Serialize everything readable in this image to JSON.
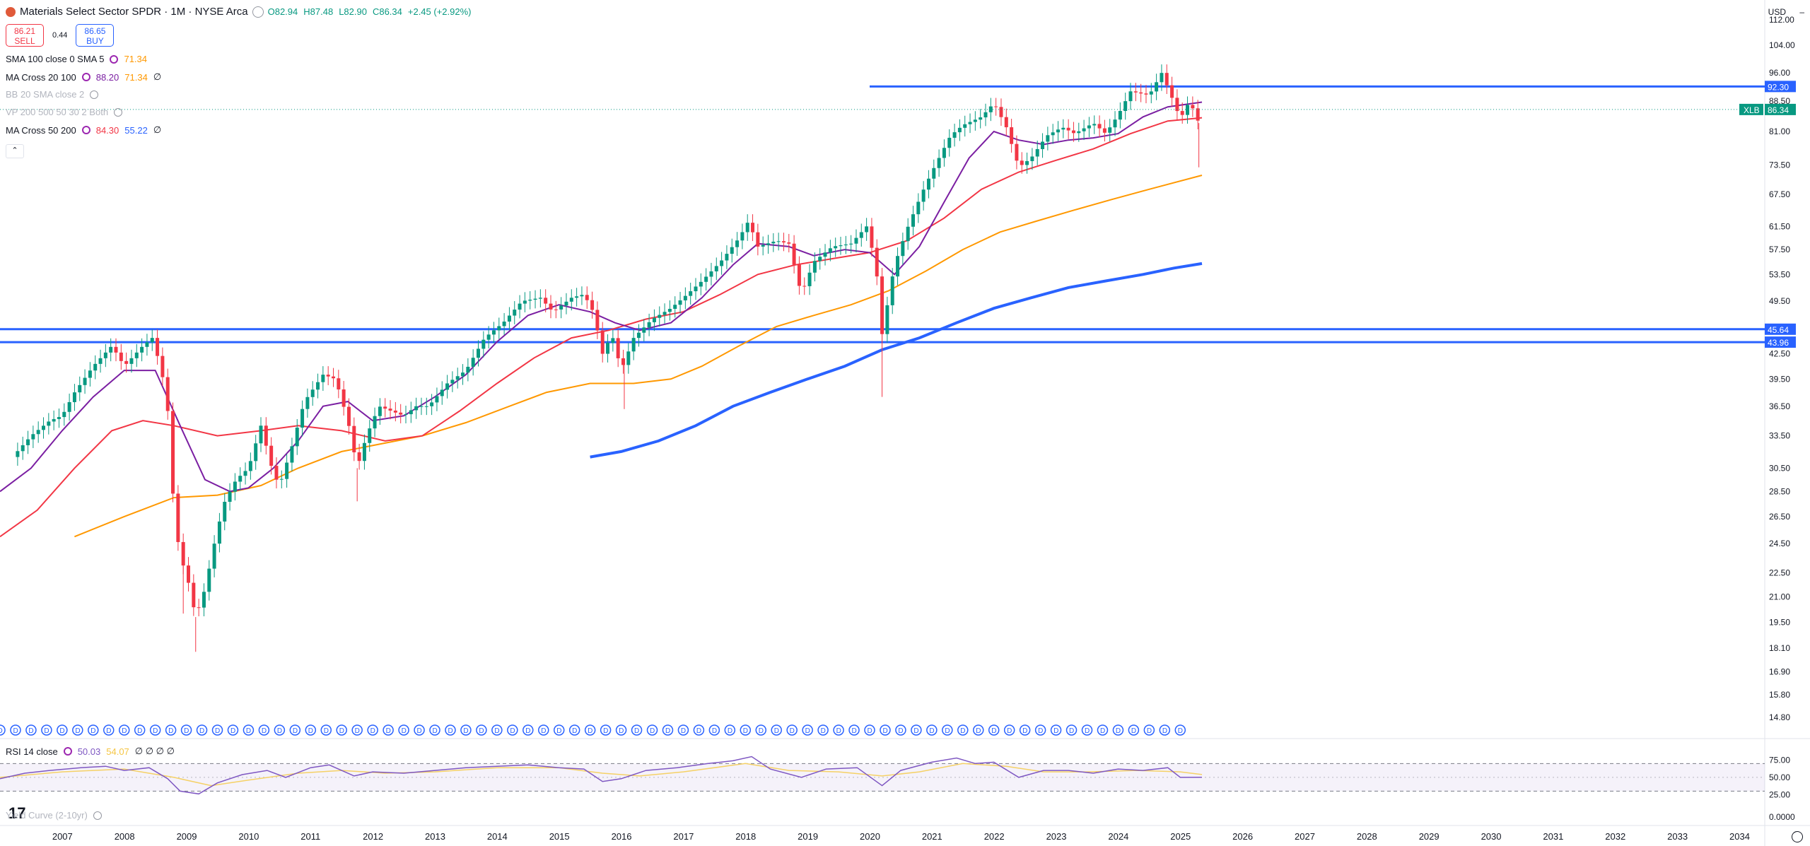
{
  "header": {
    "symbol_title": "Materials Select Sector SPDR · 1M · NYSE Arca",
    "open": "O82.94",
    "high": "H87.48",
    "low": "L82.90",
    "close": "C86.34",
    "change": "+2.45 (+2.92%)"
  },
  "trade": {
    "sell_price": "86.21",
    "sell_label": "SELL",
    "spread": "0.44",
    "buy_price": "86.65",
    "buy_label": "BUY"
  },
  "indicators": [
    {
      "label": "SMA 100 close 0 SMA 5",
      "v1": "71.34",
      "v1_color": "#ff9800",
      "v2": "",
      "v2_color": "",
      "tail": "",
      "dim": false
    },
    {
      "label": "MA Cross 20 100",
      "v1": "88.20",
      "v1_color": "#7b1fa2",
      "v2": "71.34",
      "v2_color": "#ff9800",
      "tail": "∅",
      "dim": false
    },
    {
      "label": "BB 20 SMA close 2",
      "v1": "",
      "v1_color": "",
      "v2": "",
      "v2_color": "",
      "tail": "",
      "dim": true
    },
    {
      "label": "VP 200 500 50 30 2 Both",
      "v1": "",
      "v1_color": "",
      "v2": "",
      "v2_color": "",
      "tail": "",
      "dim": true
    },
    {
      "label": "MA Cross 50 200",
      "v1": "84.30",
      "v1_color": "#f23645",
      "v2": "55.22",
      "v2_color": "#2962ff",
      "tail": "∅",
      "dim": false
    }
  ],
  "rsi": {
    "label": "RSI 14 close",
    "v1": "50.03",
    "v2": "54.07",
    "tail": "∅ ∅ ∅ ∅"
  },
  "yield_curve": {
    "label": "Yield Curve (2-10yr)"
  },
  "currency": "USD",
  "colors": {
    "up": "#089981",
    "down": "#f23645",
    "hline": "#2962ff",
    "ma20": "#7b1fa2",
    "ma50": "#f23645",
    "sma100": "#ff9800",
    "ma200": "#2962ff",
    "rsi": "#7e57c2",
    "rsi_ma": "#f5d166"
  },
  "chart_data": {
    "type": "candlestick",
    "interval": "1M",
    "scale": "log",
    "y_ticks": [
      "112.00",
      "104.00",
      "96.00",
      "88.50",
      "81.00",
      "73.50",
      "67.50",
      "61.50",
      "57.50",
      "53.50",
      "49.50",
      "42.50",
      "39.50",
      "36.50",
      "33.50",
      "30.50",
      "28.50",
      "26.50",
      "24.50",
      "22.50",
      "21.00",
      "19.50",
      "18.10",
      "16.90",
      "15.80",
      "14.80"
    ],
    "x_ticks": [
      "2007",
      "2008",
      "2009",
      "2010",
      "2011",
      "2012",
      "2013",
      "2014",
      "2015",
      "2016",
      "2017",
      "2018",
      "2019",
      "2020",
      "2021",
      "2022",
      "2023",
      "2024",
      "2025",
      "2026",
      "2027",
      "2028",
      "2029",
      "2030",
      "2031",
      "2032",
      "2033",
      "2034"
    ],
    "close_path": [
      [
        2006.2,
        31.5
      ],
      [
        2006.5,
        33.5
      ],
      [
        2006.8,
        35.0
      ],
      [
        2007.0,
        35.5
      ],
      [
        2007.2,
        38.0
      ],
      [
        2007.5,
        41.0
      ],
      [
        2007.8,
        43.5
      ],
      [
        2008.0,
        41.0
      ],
      [
        2008.3,
        43.5
      ],
      [
        2008.45,
        44.5
      ],
      [
        2008.6,
        40.5
      ],
      [
        2008.7,
        36.0
      ],
      [
        2008.8,
        27.0
      ],
      [
        2008.9,
        23.5
      ],
      [
        2009.0,
        22.5
      ],
      [
        2009.15,
        19.8
      ],
      [
        2009.3,
        21.5
      ],
      [
        2009.45,
        24.5
      ],
      [
        2009.6,
        27.5
      ],
      [
        2009.8,
        29.5
      ],
      [
        2010.0,
        30.5
      ],
      [
        2010.2,
        34.5
      ],
      [
        2010.4,
        30.0
      ],
      [
        2010.5,
        29.0
      ],
      [
        2010.7,
        32.5
      ],
      [
        2010.9,
        37.0
      ],
      [
        2011.2,
        40.0
      ],
      [
        2011.4,
        39.5
      ],
      [
        2011.6,
        35.0
      ],
      [
        2011.75,
        30.5
      ],
      [
        2011.9,
        33.5
      ],
      [
        2012.1,
        36.5
      ],
      [
        2012.3,
        36.0
      ],
      [
        2012.5,
        35.5
      ],
      [
        2012.7,
        36.5
      ],
      [
        2012.9,
        36.5
      ],
      [
        2013.2,
        39.0
      ],
      [
        2013.5,
        40.5
      ],
      [
        2013.8,
        44.5
      ],
      [
        2014.1,
        46.5
      ],
      [
        2014.4,
        49.5
      ],
      [
        2014.7,
        50.0
      ],
      [
        2014.9,
        48.0
      ],
      [
        2015.2,
        50.0
      ],
      [
        2015.4,
        50.5
      ],
      [
        2015.55,
        48.0
      ],
      [
        2015.7,
        42.5
      ],
      [
        2015.85,
        45.0
      ],
      [
        2016.0,
        40.5
      ],
      [
        2016.2,
        44.5
      ],
      [
        2016.5,
        47.0
      ],
      [
        2016.8,
        48.5
      ],
      [
        2017.0,
        50.0
      ],
      [
        2017.3,
        52.5
      ],
      [
        2017.6,
        55.5
      ],
      [
        2017.9,
        59.5
      ],
      [
        2018.05,
        62.5
      ],
      [
        2018.2,
        58.0
      ],
      [
        2018.5,
        59.0
      ],
      [
        2018.7,
        58.5
      ],
      [
        2018.9,
        50.5
      ],
      [
        2019.1,
        55.5
      ],
      [
        2019.4,
        58.0
      ],
      [
        2019.7,
        58.5
      ],
      [
        2019.95,
        61.5
      ],
      [
        2020.1,
        55.0
      ],
      [
        2020.2,
        45.0
      ],
      [
        2020.4,
        55.0
      ],
      [
        2020.6,
        61.0
      ],
      [
        2020.85,
        68.0
      ],
      [
        2021.0,
        72.0
      ],
      [
        2021.3,
        80.0
      ],
      [
        2021.5,
        82.5
      ],
      [
        2021.8,
        84.5
      ],
      [
        2022.0,
        88.0
      ],
      [
        2022.2,
        82.0
      ],
      [
        2022.4,
        73.0
      ],
      [
        2022.6,
        75.0
      ],
      [
        2022.85,
        80.0
      ],
      [
        2023.1,
        82.0
      ],
      [
        2023.3,
        80.5
      ],
      [
        2023.6,
        83.0
      ],
      [
        2023.8,
        80.5
      ],
      [
        2024.0,
        85.0
      ],
      [
        2024.2,
        91.0
      ],
      [
        2024.5,
        90.0
      ],
      [
        2024.7,
        96.0
      ],
      [
        2024.85,
        90.0
      ],
      [
        2025.0,
        84.0
      ],
      [
        2025.15,
        88.5
      ],
      [
        2025.3,
        83.0
      ],
      [
        2025.35,
        86.34
      ]
    ],
    "crash_wicks": [
      {
        "x": 2008.95,
        "low": 20.0
      },
      {
        "x": 2009.15,
        "low": 17.9
      },
      {
        "x": 2020.2,
        "low": 37.5
      },
      {
        "x": 2016.05,
        "low": 36.2
      },
      {
        "x": 2011.75,
        "low": 27.7
      },
      {
        "x": 2025.3,
        "low": 73.0
      }
    ],
    "horizontal_lines": [
      {
        "price": 92.3,
        "label": "92.30",
        "from": 2020.0
      },
      {
        "price": 45.64,
        "label": "45.64",
        "from": 2006.0
      },
      {
        "price": 43.96,
        "label": "43.96",
        "from": 2006.0
      }
    ],
    "last_price": {
      "symbol": "XLB",
      "value": "86.34"
    },
    "ma20_path": [
      [
        2006.0,
        28.5
      ],
      [
        2006.5,
        30.5
      ],
      [
        2007.0,
        34.0
      ],
      [
        2007.5,
        37.5
      ],
      [
        2008.0,
        40.5
      ],
      [
        2008.5,
        40.5
      ],
      [
        2008.9,
        34.5
      ],
      [
        2009.3,
        29.5
      ],
      [
        2009.7,
        28.5
      ],
      [
        2010.0,
        28.8
      ],
      [
        2010.4,
        30.5
      ],
      [
        2010.8,
        33.0
      ],
      [
        2011.2,
        36.5
      ],
      [
        2011.6,
        37.0
      ],
      [
        2012.0,
        35.0
      ],
      [
        2012.5,
        35.5
      ],
      [
        2013.0,
        37.5
      ],
      [
        2013.5,
        40.0
      ],
      [
        2014.0,
        44.0
      ],
      [
        2014.5,
        47.5
      ],
      [
        2015.0,
        49.0
      ],
      [
        2015.5,
        48.0
      ],
      [
        2015.9,
        46.5
      ],
      [
        2016.3,
        45.5
      ],
      [
        2016.8,
        46.5
      ],
      [
        2017.3,
        50.0
      ],
      [
        2017.8,
        55.0
      ],
      [
        2018.2,
        58.5
      ],
      [
        2018.7,
        58.0
      ],
      [
        2019.1,
        56.5
      ],
      [
        2019.6,
        57.5
      ],
      [
        2020.0,
        57.0
      ],
      [
        2020.4,
        53.5
      ],
      [
        2020.8,
        58.0
      ],
      [
        2021.2,
        66.0
      ],
      [
        2021.6,
        75.0
      ],
      [
        2022.0,
        81.0
      ],
      [
        2022.4,
        79.0
      ],
      [
        2022.8,
        78.0
      ],
      [
        2023.2,
        79.0
      ],
      [
        2023.6,
        79.5
      ],
      [
        2024.0,
        80.5
      ],
      [
        2024.4,
        84.5
      ],
      [
        2024.8,
        87.0
      ],
      [
        2025.35,
        88.2
      ]
    ],
    "ma50_path": [
      [
        2006.0,
        25.0
      ],
      [
        2006.6,
        27.0
      ],
      [
        2007.2,
        30.5
      ],
      [
        2007.8,
        34.0
      ],
      [
        2008.3,
        35.0
      ],
      [
        2008.8,
        34.5
      ],
      [
        2009.5,
        33.5
      ],
      [
        2010.2,
        34.0
      ],
      [
        2010.8,
        34.5
      ],
      [
        2011.5,
        34.0
      ],
      [
        2012.2,
        33.0
      ],
      [
        2012.8,
        33.5
      ],
      [
        2013.4,
        36.0
      ],
      [
        2014.0,
        39.0
      ],
      [
        2014.6,
        42.0
      ],
      [
        2015.2,
        44.5
      ],
      [
        2015.8,
        45.5
      ],
      [
        2016.4,
        47.0
      ],
      [
        2017.0,
        48.0
      ],
      [
        2017.6,
        50.5
      ],
      [
        2018.2,
        53.5
      ],
      [
        2018.8,
        55.0
      ],
      [
        2019.4,
        56.0
      ],
      [
        2020.0,
        57.0
      ],
      [
        2020.6,
        59.0
      ],
      [
        2021.2,
        63.0
      ],
      [
        2021.8,
        68.5
      ],
      [
        2022.4,
        72.0
      ],
      [
        2023.0,
        74.5
      ],
      [
        2023.6,
        77.0
      ],
      [
        2024.2,
        80.5
      ],
      [
        2024.8,
        83.5
      ],
      [
        2025.35,
        84.3
      ]
    ],
    "sma100_path": [
      [
        2007.2,
        25.0
      ],
      [
        2008.0,
        26.5
      ],
      [
        2008.8,
        28.0
      ],
      [
        2009.5,
        28.2
      ],
      [
        2010.2,
        29.0
      ],
      [
        2010.8,
        30.5
      ],
      [
        2011.5,
        32.0
      ],
      [
        2012.2,
        32.8
      ],
      [
        2012.8,
        33.5
      ],
      [
        2013.5,
        34.8
      ],
      [
        2014.2,
        36.5
      ],
      [
        2014.8,
        38.0
      ],
      [
        2015.5,
        39.0
      ],
      [
        2016.2,
        39.0
      ],
      [
        2016.8,
        39.5
      ],
      [
        2017.3,
        41.0
      ],
      [
        2017.9,
        43.5
      ],
      [
        2018.5,
        46.0
      ],
      [
        2019.1,
        47.5
      ],
      [
        2019.7,
        49.0
      ],
      [
        2020.3,
        51.0
      ],
      [
        2020.9,
        54.0
      ],
      [
        2021.5,
        57.5
      ],
      [
        2022.1,
        60.5
      ],
      [
        2022.7,
        62.5
      ],
      [
        2023.3,
        64.5
      ],
      [
        2023.9,
        66.5
      ],
      [
        2024.5,
        68.5
      ],
      [
        2025.35,
        71.34
      ]
    ],
    "ma200_path": [
      [
        2015.5,
        31.5
      ],
      [
        2016.0,
        32.0
      ],
      [
        2016.6,
        33.0
      ],
      [
        2017.2,
        34.5
      ],
      [
        2017.8,
        36.5
      ],
      [
        2018.4,
        38.0
      ],
      [
        2019.0,
        39.5
      ],
      [
        2019.6,
        41.0
      ],
      [
        2020.2,
        43.0
      ],
      [
        2020.8,
        44.5
      ],
      [
        2021.4,
        46.5
      ],
      [
        2022.0,
        48.5
      ],
      [
        2022.6,
        50.0
      ],
      [
        2023.2,
        51.5
      ],
      [
        2023.8,
        52.5
      ],
      [
        2024.4,
        53.5
      ],
      [
        2024.9,
        54.5
      ],
      [
        2025.35,
        55.22
      ]
    ],
    "rsi_axis": [
      "75.00",
      "50.00",
      "25.00",
      "0.0000"
    ],
    "rsi_path": [
      [
        2006.0,
        48
      ],
      [
        2006.4,
        56
      ],
      [
        2006.8,
        60
      ],
      [
        2007.3,
        64
      ],
      [
        2007.7,
        66
      ],
      [
        2008.0,
        60
      ],
      [
        2008.4,
        64
      ],
      [
        2008.7,
        48
      ],
      [
        2008.9,
        30
      ],
      [
        2009.2,
        26
      ],
      [
        2009.5,
        42
      ],
      [
        2009.9,
        54
      ],
      [
        2010.3,
        60
      ],
      [
        2010.6,
        50
      ],
      [
        2011.0,
        64
      ],
      [
        2011.3,
        68
      ],
      [
        2011.7,
        52
      ],
      [
        2012.0,
        58
      ],
      [
        2012.5,
        56
      ],
      [
        2013.0,
        60
      ],
      [
        2013.5,
        64
      ],
      [
        2014.0,
        66
      ],
      [
        2014.5,
        68
      ],
      [
        2015.0,
        64
      ],
      [
        2015.4,
        62
      ],
      [
        2015.7,
        44
      ],
      [
        2016.0,
        48
      ],
      [
        2016.4,
        60
      ],
      [
        2016.9,
        64
      ],
      [
        2017.4,
        70
      ],
      [
        2017.8,
        74
      ],
      [
        2018.1,
        80
      ],
      [
        2018.4,
        62
      ],
      [
        2018.9,
        50
      ],
      [
        2019.3,
        62
      ],
      [
        2019.8,
        64
      ],
      [
        2020.2,
        38
      ],
      [
        2020.5,
        60
      ],
      [
        2021.0,
        72
      ],
      [
        2021.4,
        78
      ],
      [
        2021.7,
        70
      ],
      [
        2022.0,
        72
      ],
      [
        2022.4,
        50
      ],
      [
        2022.8,
        60
      ],
      [
        2023.2,
        60
      ],
      [
        2023.6,
        56
      ],
      [
        2024.0,
        62
      ],
      [
        2024.4,
        60
      ],
      [
        2024.8,
        64
      ],
      [
        2025.0,
        50
      ],
      [
        2025.35,
        50.03
      ]
    ],
    "rsi_ma_path": [
      [
        2006.0,
        50
      ],
      [
        2007.0,
        58
      ],
      [
        2008.0,
        62
      ],
      [
        2008.8,
        50
      ],
      [
        2009.4,
        38
      ],
      [
        2010.0,
        46
      ],
      [
        2010.8,
        56
      ],
      [
        2011.5,
        60
      ],
      [
        2012.2,
        56
      ],
      [
        2013.0,
        58
      ],
      [
        2014.0,
        64
      ],
      [
        2015.0,
        64
      ],
      [
        2015.7,
        56
      ],
      [
        2016.3,
        52
      ],
      [
        2017.0,
        58
      ],
      [
        2018.0,
        70
      ],
      [
        2018.7,
        60
      ],
      [
        2019.5,
        58
      ],
      [
        2020.2,
        52
      ],
      [
        2020.8,
        58
      ],
      [
        2021.5,
        70
      ],
      [
        2022.2,
        66
      ],
      [
        2022.8,
        58
      ],
      [
        2023.5,
        58
      ],
      [
        2024.3,
        60
      ],
      [
        2025.0,
        58
      ],
      [
        2025.35,
        54.07
      ]
    ]
  }
}
